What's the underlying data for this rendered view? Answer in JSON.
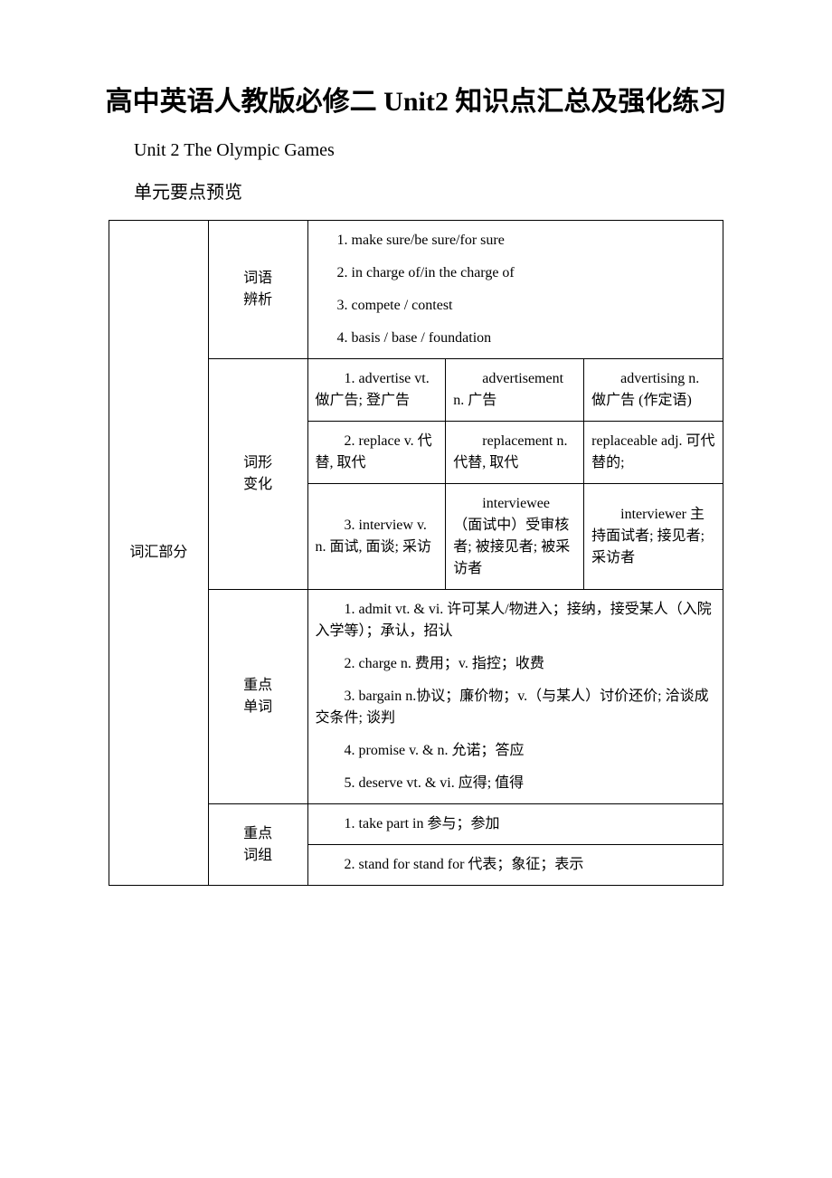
{
  "title": "高中英语人教版必修二 Unit2 知识点汇总及强化练习",
  "subtitle": "Unit 2 The Olympic Games",
  "previewLabel": "单元要点预览",
  "mainSection": "词汇部分",
  "sections": {
    "analysis": {
      "label1": "词语",
      "label2": "辨析",
      "items": [
        "1. make sure/be sure/for sure",
        "2. in charge of/in the charge of",
        "3. compete / contest",
        "4. basis / base / foundation"
      ]
    },
    "forms": {
      "label1": "词形",
      "label2": "变化",
      "rows": [
        {
          "col1_a": "　　1. advertise vt. 做广告; 登广告",
          "col2_a": "　　advertisement n. 广告",
          "col3_a": "　　advertising n. 做广告 (作定语)"
        },
        {
          "col1_a": "　　2. replace v. 代替, 取代",
          "col2_a": "　　replacement n. 代替, 取代",
          "col3_a": "replaceable adj. 可代替的;"
        },
        {
          "col1_a": "　　3. interview v. n. 面试, 面谈; 采访",
          "col2_a": "　　interviewee　（面试中）受审核者; 被接见者; 被采访者",
          "col3_a": "　　interviewer 主持面试者; 接见者; 采访者"
        }
      ]
    },
    "keywords": {
      "label1": "重点",
      "label2": "单词",
      "items": [
        "　　1. admit vt. & vi. 许可某人/物进入；接纳，接受某人（入院入学等）；承认，招认",
        "　　2. charge n. 费用；v. 指控；收费",
        "　　3. bargain n.协议；廉价物；v.（与某人）讨价还价; 洽谈成交条件; 谈判",
        "　　4. promise v. & n. 允诺；答应",
        "　　5. deserve vt. & vi. 应得; 值得"
      ]
    },
    "phrases": {
      "label1": "重点",
      "label2": "词组",
      "items": [
        "　　1. take part in 参与；参加",
        "　　2. stand for stand for 代表；象征；表示"
      ]
    }
  }
}
